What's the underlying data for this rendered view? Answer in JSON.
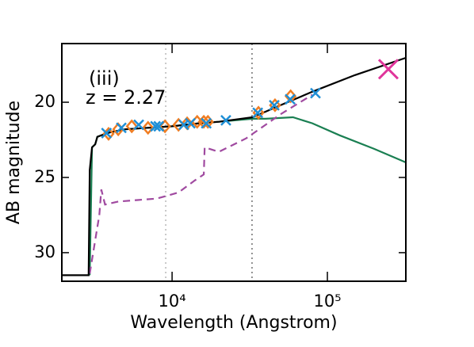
{
  "chart_data": {
    "type": "line",
    "xscale": "log",
    "xlabel": "Wavelength (Angstrom)",
    "ylabel": "AB magnitude",
    "annotations": [
      "(iii)",
      "z = 2.27"
    ],
    "xlim": [
      1950,
      320000
    ],
    "ylim": [
      31.9,
      16.1
    ],
    "xticks": [
      {
        "value": 10000,
        "label": "10⁴"
      },
      {
        "value": 100000,
        "label": "10⁵"
      }
    ],
    "yticks": [
      20,
      25,
      30
    ],
    "vlines": [
      {
        "x": 9100,
        "color": "#c8c8c8"
      },
      {
        "x": 32700,
        "color": "#909090"
      }
    ],
    "series": [
      {
        "color": "#1a7f52",
        "style": "solid",
        "x": [
          2950,
          3050,
          3200,
          3300,
          3500,
          4000,
          5000,
          7000,
          10000,
          15000,
          20000,
          33000,
          40000,
          60000,
          80000,
          120000,
          200000,
          320000
        ],
        "values": [
          31.5,
          23,
          22.8,
          22.3,
          22.2,
          22,
          21.8,
          21.7,
          21.6,
          21.4,
          21.3,
          21.1,
          21.1,
          21.0,
          21.4,
          22.2,
          23.1,
          24.0
        ]
      },
      {
        "color": "#a04aa0",
        "style": "dashed",
        "x": [
          2950,
          3400,
          3500,
          3700,
          4500,
          6000,
          8000,
          11000,
          14000,
          16000,
          16200,
          20000,
          30000,
          40000,
          50000,
          80000
        ],
        "values": [
          31.4,
          27.5,
          25.8,
          26.8,
          26.6,
          26.5,
          26.4,
          26.0,
          25.2,
          24.8,
          23.0,
          23.3,
          22.4,
          21.5,
          20.8,
          19.5
        ]
      },
      {
        "color": "#000000",
        "style": "solid",
        "x": [
          1950,
          2900,
          2950,
          3050,
          3200,
          3300,
          3500,
          4000,
          5000,
          7000,
          10000,
          15000,
          20000,
          33000,
          50000,
          80000,
          150000,
          320000
        ],
        "values": [
          31.5,
          31.5,
          24.5,
          23,
          22.8,
          22.3,
          22.2,
          22,
          21.8,
          21.7,
          21.6,
          21.4,
          21.3,
          21.0,
          20.2,
          19.3,
          18.2,
          17.05
        ]
      },
      {
        "color": "#f07d22",
        "style": "diamond",
        "x": [
          3900,
          4500,
          5500,
          7000,
          9000,
          11000,
          12500,
          14500,
          16000,
          17000,
          36000,
          46000,
          58000
        ],
        "values": [
          22.1,
          21.8,
          21.6,
          21.7,
          21.6,
          21.5,
          21.4,
          21.3,
          21.3,
          21.3,
          20.7,
          20.2,
          19.6
        ]
      },
      {
        "color": "#1f8fd6",
        "style": "x",
        "x": [
          3780,
          4710,
          6100,
          7820,
          8210,
          11900,
          13100,
          16600,
          22200,
          35600,
          45500,
          57600,
          83800
        ],
        "values": [
          22.05,
          21.7,
          21.5,
          21.6,
          21.6,
          21.5,
          21.4,
          21.4,
          21.2,
          20.7,
          20.2,
          19.8,
          19.4
        ]
      },
      {
        "color": "#e0359b",
        "style": "bigx",
        "x": [
          247000
        ],
        "values": [
          17.8
        ]
      }
    ]
  }
}
